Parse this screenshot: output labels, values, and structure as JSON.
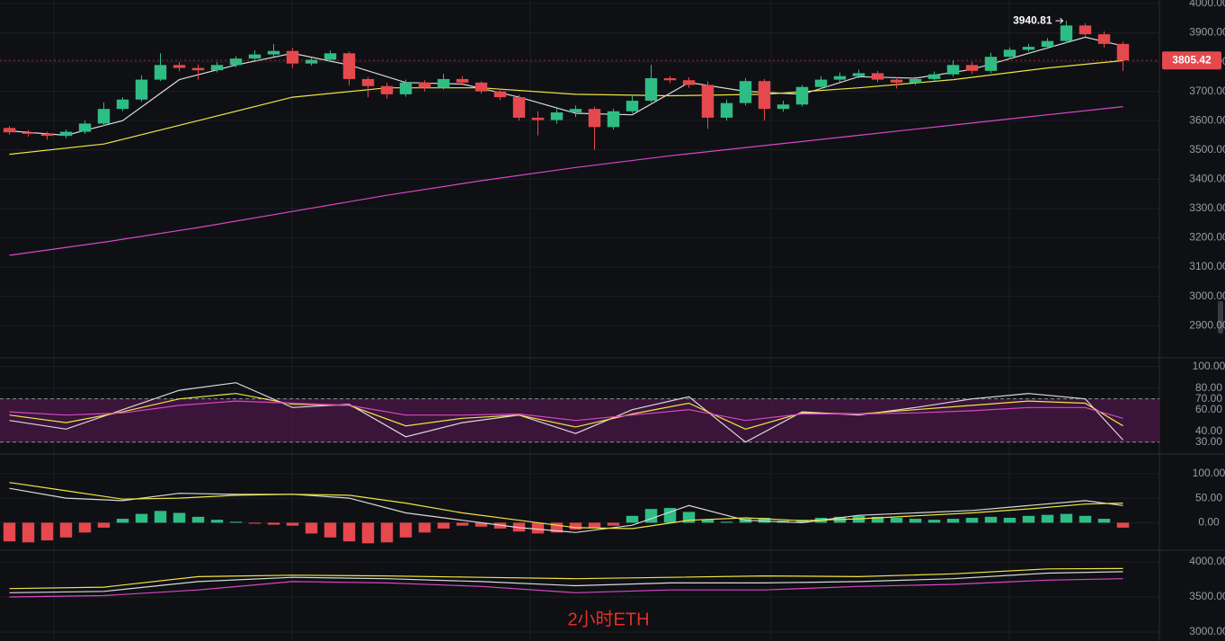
{
  "caption": "2小时ETH",
  "chart_data": [
    {
      "type": "candlestick",
      "color_up": "#2ebd85",
      "color_down": "#e5484d",
      "last_price": 3805.42,
      "high_label": 3940.81,
      "ylim": [
        2790,
        4012
      ],
      "yticks": [
        {
          "value": 2900,
          "label": "2900.00"
        },
        {
          "value": 3000,
          "label": "3000.00"
        },
        {
          "value": 3100,
          "label": "3100.00"
        },
        {
          "value": 3200,
          "label": "3200.00"
        },
        {
          "value": 3300,
          "label": "3300.00"
        },
        {
          "value": 3400,
          "label": "3400.00"
        },
        {
          "value": 3500,
          "label": "3500.00"
        },
        {
          "value": 3600,
          "label": "3600.00"
        },
        {
          "value": 3700,
          "label": "3700.00"
        },
        {
          "value": 3800,
          "label": "3800.00"
        },
        {
          "value": 3900,
          "label": "3900.00"
        },
        {
          "value": 4000,
          "label": "4000.00"
        }
      ],
      "open": [
        3575,
        3560,
        3555,
        3548,
        3562,
        3590,
        3640,
        3672,
        3740,
        3790,
        3780,
        3772,
        3790,
        3812,
        3826,
        3838,
        3795,
        3808,
        3830,
        3742,
        3718,
        3690,
        3730,
        3712,
        3742,
        3730,
        3700,
        3680,
        3610,
        3602,
        3628,
        3640,
        3578,
        3632,
        3668,
        3745,
        3738,
        3722,
        3610,
        3660,
        3735,
        3640,
        3655,
        3715,
        3740,
        3752,
        3762,
        3740,
        3730,
        3742,
        3758,
        3790,
        3770,
        3818,
        3842,
        3852,
        3872,
        3925,
        3895,
        3862
      ],
      "high": [
        3582,
        3568,
        3562,
        3570,
        3600,
        3662,
        3680,
        3755,
        3830,
        3800,
        3792,
        3800,
        3820,
        3840,
        3862,
        3848,
        3815,
        3840,
        3836,
        3750,
        3730,
        3740,
        3738,
        3760,
        3752,
        3735,
        3708,
        3688,
        3632,
        3640,
        3652,
        3648,
        3640,
        3690,
        3790,
        3752,
        3748,
        3735,
        3672,
        3745,
        3742,
        3668,
        3722,
        3752,
        3764,
        3774,
        3770,
        3748,
        3750,
        3768,
        3805,
        3800,
        3832,
        3850,
        3862,
        3882,
        3940.81,
        3932,
        3905,
        3870
      ],
      "low": [
        3552,
        3545,
        3535,
        3540,
        3555,
        3582,
        3632,
        3665,
        3735,
        3768,
        3740,
        3765,
        3782,
        3805,
        3818,
        3780,
        3788,
        3800,
        3720,
        3680,
        3675,
        3682,
        3700,
        3706,
        3722,
        3692,
        3670,
        3600,
        3550,
        3590,
        3612,
        3500,
        3570,
        3625,
        3662,
        3728,
        3712,
        3572,
        3600,
        3652,
        3600,
        3630,
        3648,
        3708,
        3732,
        3745,
        3732,
        3710,
        3722,
        3735,
        3750,
        3760,
        3762,
        3810,
        3835,
        3845,
        3865,
        3885,
        3850,
        3770
      ],
      "close": [
        3560,
        3555,
        3548,
        3562,
        3590,
        3640,
        3672,
        3740,
        3790,
        3780,
        3772,
        3790,
        3812,
        3826,
        3838,
        3795,
        3808,
        3830,
        3742,
        3718,
        3690,
        3730,
        3712,
        3742,
        3730,
        3700,
        3680,
        3610,
        3602,
        3628,
        3640,
        3578,
        3632,
        3668,
        3745,
        3738,
        3722,
        3610,
        3660,
        3735,
        3640,
        3655,
        3715,
        3740,
        3752,
        3762,
        3740,
        3730,
        3742,
        3758,
        3790,
        3770,
        3818,
        3842,
        3852,
        3872,
        3925,
        3895,
        3862,
        3805.42
      ],
      "series": [
        {
          "color": "#d9d9d9",
          "x": [
            0,
            3,
            6,
            9,
            12,
            15,
            18,
            21,
            24,
            27,
            30,
            33,
            36,
            39,
            42,
            45,
            48,
            51,
            54,
            57,
            59
          ],
          "values": [
            3565,
            3550,
            3600,
            3740,
            3790,
            3830,
            3790,
            3730,
            3725,
            3680,
            3625,
            3620,
            3730,
            3700,
            3690,
            3750,
            3745,
            3775,
            3830,
            3885,
            3855
          ]
        },
        {
          "color": "#f0e442",
          "x": [
            0,
            5,
            10,
            15,
            20,
            25,
            30,
            35,
            40,
            45,
            50,
            55,
            59
          ],
          "values": [
            3485,
            3520,
            3600,
            3680,
            3712,
            3712,
            3690,
            3685,
            3690,
            3712,
            3740,
            3780,
            3805
          ]
        },
        {
          "color": "#d946c6",
          "x": [
            0,
            5,
            10,
            15,
            20,
            25,
            30,
            35,
            40,
            45,
            50,
            55,
            59
          ],
          "values": [
            3140,
            3185,
            3235,
            3290,
            3345,
            3395,
            3440,
            3480,
            3515,
            3550,
            3585,
            3620,
            3648
          ]
        }
      ]
    },
    {
      "type": "line",
      "ylim": [
        19,
        108
      ],
      "bands": [
        30,
        70
      ],
      "yticks": [
        {
          "value": 30,
          "label": "30.00"
        },
        {
          "value": 40,
          "label": "40.00"
        },
        {
          "value": 60,
          "label": "60.00"
        },
        {
          "value": 70,
          "label": "70.00"
        },
        {
          "value": 80,
          "label": "80.00"
        },
        {
          "value": 100,
          "label": "100.00"
        }
      ],
      "series": [
        {
          "color": "#d9d9d9",
          "x": [
            0,
            3,
            6,
            9,
            12,
            15,
            18,
            21,
            24,
            27,
            30,
            33,
            36,
            39,
            42,
            45,
            48,
            51,
            54,
            57,
            59
          ],
          "values": [
            50,
            42,
            60,
            78,
            85,
            62,
            65,
            35,
            48,
            55,
            38,
            60,
            72,
            30,
            58,
            55,
            62,
            70,
            75,
            70,
            32
          ]
        },
        {
          "color": "#f0e442",
          "x": [
            0,
            3,
            6,
            9,
            12,
            15,
            18,
            21,
            24,
            27,
            30,
            33,
            36,
            39,
            42,
            45,
            48,
            51,
            54,
            57,
            59
          ],
          "values": [
            55,
            48,
            58,
            70,
            75,
            65,
            64,
            45,
            52,
            55,
            44,
            56,
            66,
            42,
            57,
            56,
            60,
            64,
            68,
            66,
            45
          ]
        },
        {
          "color": "#d946c6",
          "x": [
            0,
            3,
            6,
            9,
            12,
            15,
            18,
            21,
            24,
            27,
            30,
            33,
            36,
            39,
            42,
            45,
            48,
            51,
            54,
            57,
            59
          ],
          "values": [
            58,
            55,
            57,
            64,
            68,
            66,
            64,
            55,
            55,
            56,
            50,
            55,
            60,
            50,
            56,
            56,
            57,
            59,
            62,
            62,
            52
          ]
        }
      ]
    },
    {
      "type": "macd",
      "ylim": [
        -56,
        140
      ],
      "color_up": "#2ebd85",
      "color_down": "#e5484d",
      "yticks": [
        {
          "value": 0,
          "label": "0.00"
        },
        {
          "value": 50,
          "label": "50.00"
        },
        {
          "value": 100,
          "label": "100.00"
        }
      ],
      "bars": [
        -38,
        -40,
        -36,
        -30,
        -20,
        -10,
        8,
        18,
        24,
        20,
        12,
        6,
        2,
        -2,
        -4,
        -6,
        -22,
        -30,
        -38,
        -42,
        -40,
        -30,
        -20,
        -12,
        -6,
        -8,
        -12,
        -18,
        -22,
        -20,
        -14,
        -10,
        -6,
        14,
        28,
        30,
        22,
        6,
        2,
        8,
        10,
        4,
        6,
        10,
        12,
        14,
        12,
        10,
        8,
        6,
        8,
        10,
        12,
        10,
        14,
        16,
        18,
        14,
        8,
        -10
      ],
      "series": [
        {
          "color": "#d9d9d9",
          "x": [
            0,
            3,
            6,
            9,
            12,
            15,
            18,
            21,
            24,
            27,
            30,
            33,
            36,
            39,
            42,
            45,
            48,
            51,
            54,
            57,
            59
          ],
          "values": [
            70,
            50,
            45,
            60,
            58,
            58,
            50,
            20,
            5,
            -10,
            -20,
            -5,
            35,
            5,
            0,
            15,
            20,
            25,
            35,
            45,
            35
          ]
        },
        {
          "color": "#f0e442",
          "x": [
            0,
            3,
            6,
            9,
            12,
            15,
            18,
            21,
            24,
            27,
            30,
            33,
            36,
            39,
            42,
            45,
            48,
            51,
            54,
            57,
            59
          ],
          "values": [
            82,
            65,
            48,
            50,
            56,
            58,
            56,
            40,
            20,
            5,
            -10,
            -12,
            5,
            10,
            4,
            8,
            14,
            20,
            28,
            38,
            40
          ]
        }
      ]
    },
    {
      "type": "line",
      "ylim": [
        2872,
        4167
      ],
      "yticks": [
        {
          "value": 3000,
          "label": "3000.00"
        },
        {
          "value": 3500,
          "label": "3500.00"
        },
        {
          "value": 4000,
          "label": "4000.00"
        }
      ],
      "series": [
        {
          "color": "#f0e442",
          "x": [
            0,
            5,
            10,
            15,
            20,
            25,
            30,
            35,
            40,
            45,
            50,
            55,
            59
          ],
          "values": [
            3620,
            3640,
            3790,
            3810,
            3800,
            3780,
            3760,
            3780,
            3800,
            3790,
            3830,
            3900,
            3905
          ]
        },
        {
          "color": "#d9d9d9",
          "x": [
            0,
            5,
            10,
            15,
            20,
            25,
            30,
            35,
            40,
            45,
            50,
            55,
            59
          ],
          "values": [
            3560,
            3580,
            3720,
            3780,
            3760,
            3720,
            3660,
            3700,
            3700,
            3720,
            3760,
            3840,
            3860
          ]
        },
        {
          "color": "#d946c6",
          "x": [
            0,
            5,
            10,
            15,
            20,
            25,
            30,
            35,
            40,
            45,
            50,
            55,
            59
          ],
          "values": [
            3500,
            3520,
            3600,
            3720,
            3700,
            3650,
            3560,
            3600,
            3600,
            3650,
            3680,
            3740,
            3760
          ]
        }
      ]
    }
  ]
}
